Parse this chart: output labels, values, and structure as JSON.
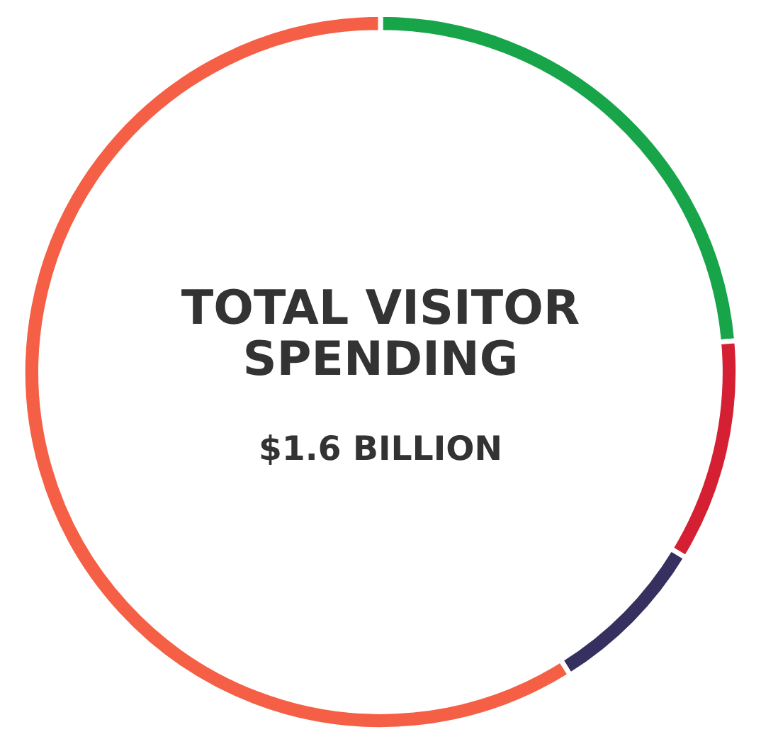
{
  "chart_data": {
    "type": "donut",
    "title": "TOTAL VISITOR\nSPENDING",
    "subtitle": "$1.6 BILLION",
    "categories": [
      null,
      null,
      null,
      null
    ],
    "values": [
      23.6,
      10.1,
      7.4,
      58.9
    ],
    "colors": [
      "#18a54a",
      "#d42032",
      "#35305f",
      "#f55f46"
    ]
  }
}
